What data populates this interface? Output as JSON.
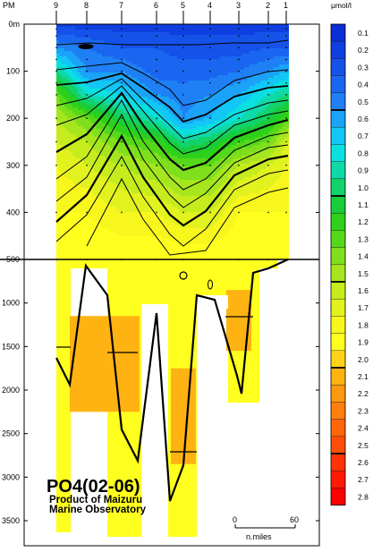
{
  "chart_data": {
    "type": "heatmap",
    "title": "PO4(02-06)",
    "subtitle_lines": [
      "Product of Maizuru",
      "Marine Observatory"
    ],
    "x_axis_label": "PM",
    "stations": [
      "9",
      "8",
      "7",
      "6",
      "5",
      "4",
      "3",
      "2",
      "1"
    ],
    "y_ticks": [
      "0m",
      "100",
      "200",
      "300",
      "400",
      "500",
      "1000",
      "1500",
      "2000",
      "2500",
      "3000",
      "3500"
    ],
    "y_upper_range": [
      0,
      500
    ],
    "y_lower_range": [
      500,
      3500
    ],
    "scale_bar": {
      "start": "0",
      "end": "60",
      "unit": "n.miles"
    },
    "legend": {
      "unit": "μmol/l",
      "bins": [
        {
          "label": "0.1",
          "color": "#0a2fd6"
        },
        {
          "label": "0.2",
          "color": "#0f3fe0"
        },
        {
          "label": "0.3",
          "color": "#1452ea"
        },
        {
          "label": "0.4",
          "color": "#1a66f0"
        },
        {
          "label": "0.5",
          "color": "#1f80f5"
        },
        {
          "label": "0.6",
          "color": "#1aa3f7"
        },
        {
          "label": "0.7",
          "color": "#12c6f5"
        },
        {
          "label": "0.8",
          "color": "#0ae0e0"
        },
        {
          "label": "0.9",
          "color": "#0fd9a8"
        },
        {
          "label": "1.0",
          "color": "#12d26a"
        },
        {
          "label": "1.1",
          "color": "#19cc3a"
        },
        {
          "label": "1.2",
          "color": "#2dd11a"
        },
        {
          "label": "1.3",
          "color": "#55d81a"
        },
        {
          "label": "1.4",
          "color": "#7fdf1c"
        },
        {
          "label": "1.5",
          "color": "#a6e61e"
        },
        {
          "label": "1.6",
          "color": "#c6ec1e"
        },
        {
          "label": "1.7",
          "color": "#e2f21e"
        },
        {
          "label": "1.8",
          "color": "#f7f71e"
        },
        {
          "label": "1.9",
          "color": "#ffff1f"
        },
        {
          "label": "2.0",
          "color": "#ffd21a"
        },
        {
          "label": "2.1",
          "color": "#ffb312"
        },
        {
          "label": "2.2",
          "color": "#ff990f"
        },
        {
          "label": "2.3",
          "color": "#ff7f0c"
        },
        {
          "label": "2.4",
          "color": "#ff660a"
        },
        {
          "label": "2.5",
          "color": "#ff4d08"
        },
        {
          "label": "2.6",
          "color": "#ff3306"
        },
        {
          "label": "2.7",
          "color": "#ff1a04"
        },
        {
          "label": "2.8",
          "color": "#ff0000"
        }
      ]
    },
    "concentration_field": {
      "depth_m": [
        0,
        50,
        100,
        150,
        200,
        250,
        300,
        400,
        500
      ],
      "rows_by_station_9_to_1": [
        [
          0.15,
          0.15,
          0.15,
          0.15,
          0.15,
          0.15,
          0.15,
          0.15,
          0.15
        ],
        [
          0.5,
          0.4,
          0.3,
          0.3,
          0.25,
          0.25,
          0.25,
          0.3,
          0.3
        ],
        [
          0.9,
          0.5,
          0.5,
          0.35,
          0.35,
          0.35,
          0.4,
          0.5,
          0.6
        ],
        [
          1.3,
          0.8,
          0.7,
          0.5,
          0.45,
          0.5,
          0.6,
          0.8,
          0.9
        ],
        [
          1.5,
          1.3,
          1.0,
          0.8,
          0.5,
          0.6,
          0.8,
          1.0,
          1.2
        ],
        [
          1.6,
          1.5,
          1.3,
          1.2,
          0.9,
          1.0,
          1.2,
          1.3,
          1.6
        ],
        [
          1.7,
          1.6,
          1.5,
          1.4,
          1.3,
          1.3,
          1.5,
          1.6,
          1.7
        ],
        [
          1.8,
          1.8,
          1.7,
          1.7,
          1.6,
          1.6,
          1.8,
          1.8,
          1.8
        ],
        [
          1.9,
          1.9,
          1.9,
          1.9,
          1.9,
          1.9,
          1.9,
          1.9,
          1.9
        ]
      ]
    },
    "deep_regions": [
      {
        "from_station": "8",
        "to_station": "7",
        "depth_top": 1150,
        "depth_bottom": 2250,
        "value_range": "2.0-2.1"
      },
      {
        "from_station": "5",
        "to_station": "5",
        "depth_top": 1750,
        "depth_bottom": 2850,
        "value_range": "2.0-2.1"
      },
      {
        "from_station": "3",
        "to_station": "3",
        "depth_top": 850,
        "depth_bottom": 1550,
        "value_range": "2.0-2.1"
      }
    ]
  }
}
